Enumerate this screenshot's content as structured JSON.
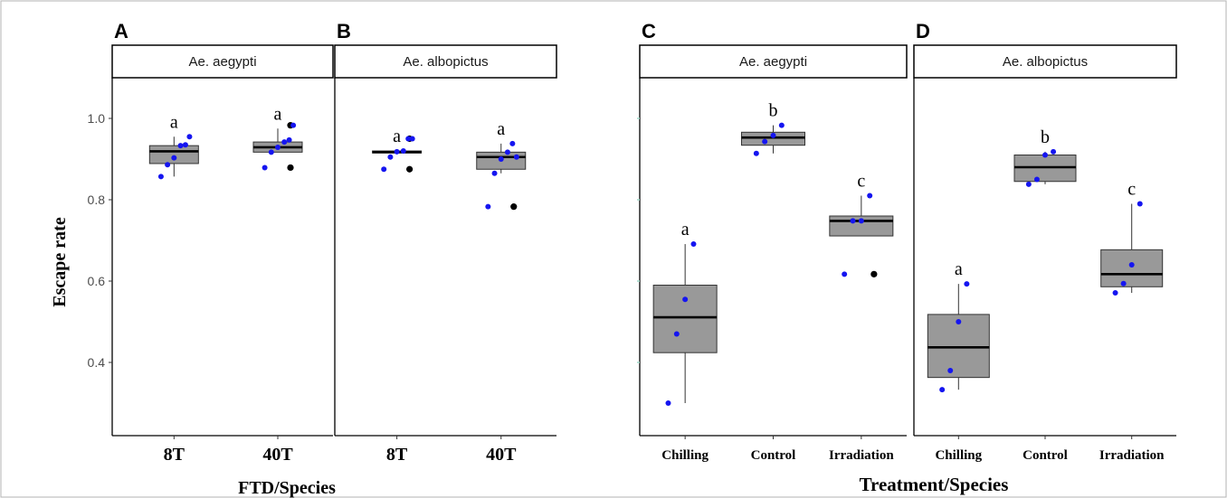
{
  "colors": {
    "box_fill": "#999999",
    "point": "#1515f0",
    "outlier": "#000000",
    "figure_border": "#b3b3b3"
  },
  "left_figure": {
    "ylabel": "Escape rate",
    "xlabel": "FTD/Species"
  },
  "right_figure": {
    "xlabel": "Treatment/Species"
  },
  "chart_data": [
    {
      "type": "box",
      "panel": "A",
      "facet_label": "Ae. aegypti",
      "categories": [
        "8T",
        "40T"
      ],
      "ylim": [
        0.22,
        1.1
      ],
      "yticks": [
        0.4,
        0.6,
        0.8,
        1.0
      ],
      "ytick_labels": [
        "0.4",
        "0.6",
        "0.8",
        "1.0"
      ],
      "boxes": [
        {
          "category": "8T",
          "q1": 0.889,
          "median": 0.919,
          "q3": 0.933,
          "whisker_low": 0.857,
          "whisker_high": 0.955,
          "outliers": [],
          "points": [
            0.857,
            0.886,
            0.903,
            0.933,
            0.935,
            0.955
          ],
          "letter": "a"
        },
        {
          "category": "40T",
          "q1": 0.917,
          "median": 0.929,
          "q3": 0.942,
          "whisker_low": 0.917,
          "whisker_high": 0.975,
          "outliers": [
            0.879,
            0.983
          ],
          "points": [
            0.879,
            0.917,
            0.929,
            0.942,
            0.947,
            0.983
          ],
          "letter": "a"
        }
      ]
    },
    {
      "type": "box",
      "panel": "B",
      "facet_label": "Ae. albopictus",
      "categories": [
        "8T",
        "40T"
      ],
      "ylim": [
        0.22,
        1.1
      ],
      "boxes": [
        {
          "category": "8T",
          "q1": 0.915,
          "median": 0.917,
          "q3": 0.92,
          "whisker_low": 0.915,
          "whisker_high": 0.92,
          "outliers": [
            0.875,
            0.95
          ],
          "points": [
            0.875,
            0.905,
            0.918,
            0.92,
            0.95,
            0.95
          ],
          "letter": "a"
        },
        {
          "category": "40T",
          "q1": 0.875,
          "median": 0.905,
          "q3": 0.917,
          "whisker_low": 0.865,
          "whisker_high": 0.938,
          "outliers": [
            0.783
          ],
          "points": [
            0.783,
            0.865,
            0.9,
            0.917,
            0.938,
            0.905
          ],
          "letter": "a"
        }
      ]
    },
    {
      "type": "box",
      "panel": "C",
      "facet_label": "Ae. aegypti",
      "categories": [
        "Chilling",
        "Control",
        "Irradiation"
      ],
      "ylim": [
        0.22,
        1.1
      ],
      "boxes": [
        {
          "category": "Chilling",
          "q1": 0.424,
          "median": 0.511,
          "q3": 0.59,
          "whisker_low": 0.3,
          "whisker_high": 0.691,
          "outliers": [],
          "points": [
            0.3,
            0.47,
            0.555,
            0.691
          ],
          "letter": "a"
        },
        {
          "category": "Control",
          "q1": 0.934,
          "median": 0.953,
          "q3": 0.966,
          "whisker_low": 0.914,
          "whisker_high": 0.983,
          "outliers": [],
          "points": [
            0.914,
            0.943,
            0.958,
            0.983
          ],
          "letter": "b"
        },
        {
          "category": "Irradiation",
          "q1": 0.711,
          "median": 0.748,
          "q3": 0.76,
          "whisker_low": 0.711,
          "whisker_high": 0.81,
          "outliers": [
            0.617
          ],
          "points": [
            0.617,
            0.748,
            0.748,
            0.81
          ],
          "letter": "c"
        }
      ]
    },
    {
      "type": "box",
      "panel": "D",
      "facet_label": "Ae. albopictus",
      "categories": [
        "Chilling",
        "Control",
        "Irradiation"
      ],
      "ylim": [
        0.22,
        1.1
      ],
      "boxes": [
        {
          "category": "Chilling",
          "q1": 0.363,
          "median": 0.437,
          "q3": 0.518,
          "whisker_low": 0.333,
          "whisker_high": 0.593,
          "outliers": [],
          "points": [
            0.333,
            0.38,
            0.5,
            0.593
          ],
          "letter": "a"
        },
        {
          "category": "Control",
          "q1": 0.845,
          "median": 0.88,
          "q3": 0.91,
          "whisker_low": 0.838,
          "whisker_high": 0.918,
          "outliers": [],
          "points": [
            0.838,
            0.85,
            0.91,
            0.918
          ],
          "letter": "b"
        },
        {
          "category": "Irradiation",
          "q1": 0.586,
          "median": 0.617,
          "q3": 0.677,
          "whisker_low": 0.571,
          "whisker_high": 0.79,
          "outliers": [],
          "points": [
            0.571,
            0.594,
            0.64,
            0.79
          ],
          "letter": "c"
        }
      ]
    }
  ]
}
